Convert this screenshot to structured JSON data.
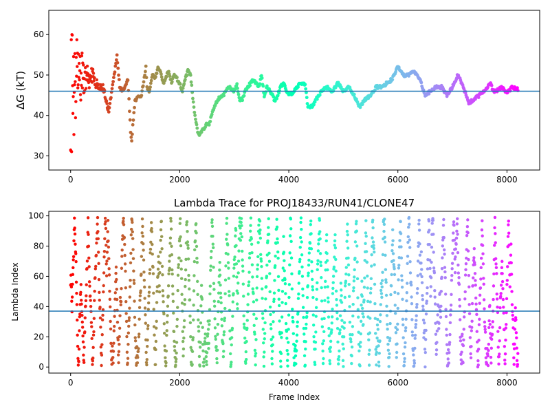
{
  "chart_data": [
    {
      "type": "scatter",
      "title": "",
      "xlabel": "",
      "ylabel": "ΔG (kT)",
      "xlim": [
        -400,
        8600
      ],
      "ylim": [
        26.5,
        66.0
      ],
      "xticks": [
        "0",
        "2000",
        "4000",
        "6000",
        "8000"
      ],
      "yticks": [
        "30",
        "40",
        "50",
        "60"
      ],
      "hline": 46.0,
      "hline_color": "#1f77b4",
      "colormap": "rainbow",
      "frames": 8200,
      "trace": [
        [
          0,
          44
        ],
        [
          100,
          50
        ],
        [
          200,
          50
        ],
        [
          300,
          49
        ],
        [
          400,
          50
        ],
        [
          500,
          47
        ],
        [
          600,
          47
        ],
        [
          700,
          41
        ],
        [
          800,
          50
        ],
        [
          850,
          55
        ],
        [
          900,
          47
        ],
        [
          950,
          46
        ],
        [
          1000,
          47
        ],
        [
          1050,
          49
        ],
        [
          1100,
          36
        ],
        [
          1120,
          34
        ],
        [
          1180,
          44
        ],
        [
          1200,
          44
        ],
        [
          1300,
          45
        ],
        [
          1380,
          52
        ],
        [
          1400,
          47
        ],
        [
          1450,
          46
        ],
        [
          1500,
          50
        ],
        [
          1550,
          49
        ],
        [
          1600,
          52
        ],
        [
          1650,
          51
        ],
        [
          1700,
          48
        ],
        [
          1800,
          51
        ],
        [
          1850,
          48
        ],
        [
          1900,
          50
        ],
        [
          2000,
          48
        ],
        [
          2050,
          46
        ],
        [
          2100,
          49
        ],
        [
          2150,
          51
        ],
        [
          2200,
          50
        ],
        [
          2250,
          43
        ],
        [
          2300,
          38
        ],
        [
          2350,
          35
        ],
        [
          2400,
          36
        ],
        [
          2500,
          38
        ],
        [
          2550,
          38
        ],
        [
          2600,
          41
        ],
        [
          2700,
          44
        ],
        [
          2800,
          45
        ],
        [
          2900,
          47
        ],
        [
          3000,
          46
        ],
        [
          3050,
          47.5
        ],
        [
          3100,
          44
        ],
        [
          3150,
          44
        ],
        [
          3200,
          46
        ],
        [
          3300,
          48
        ],
        [
          3350,
          49
        ],
        [
          3400,
          48
        ],
        [
          3450,
          47
        ],
        [
          3500,
          50
        ],
        [
          3550,
          45
        ],
        [
          3600,
          47
        ],
        [
          3700,
          45
        ],
        [
          3750,
          43.5
        ],
        [
          3850,
          47
        ],
        [
          3900,
          48
        ],
        [
          4000,
          45
        ],
        [
          4100,
          46
        ],
        [
          4200,
          48
        ],
        [
          4300,
          47.5
        ],
        [
          4350,
          42
        ],
        [
          4450,
          42.5
        ],
        [
          4500,
          44
        ],
        [
          4600,
          46
        ],
        [
          4700,
          47
        ],
        [
          4800,
          46
        ],
        [
          4900,
          48
        ],
        [
          5000,
          46
        ],
        [
          5100,
          47
        ],
        [
          5200,
          45
        ],
        [
          5300,
          42
        ],
        [
          5400,
          44
        ],
        [
          5500,
          45
        ],
        [
          5600,
          47
        ],
        [
          5700,
          47
        ],
        [
          5800,
          48
        ],
        [
          5900,
          49
        ],
        [
          6000,
          52
        ],
        [
          6100,
          50
        ],
        [
          6200,
          50
        ],
        [
          6300,
          51
        ],
        [
          6350,
          50
        ],
        [
          6400,
          49
        ],
        [
          6500,
          45
        ],
        [
          6600,
          46
        ],
        [
          6700,
          47
        ],
        [
          6800,
          47
        ],
        [
          6900,
          45
        ],
        [
          7000,
          47
        ],
        [
          7100,
          50
        ],
        [
          7200,
          47
        ],
        [
          7300,
          43
        ],
        [
          7400,
          44
        ],
        [
          7500,
          45
        ],
        [
          7600,
          46
        ],
        [
          7700,
          48
        ],
        [
          7750,
          46
        ],
        [
          7800,
          46
        ],
        [
          7900,
          47
        ],
        [
          8000,
          45.5
        ],
        [
          8100,
          47
        ],
        [
          8200,
          46.5
        ]
      ]
    },
    {
      "type": "scatter",
      "title": "Lambda Trace for PROJ18433/RUN41/CLONE47",
      "xlabel": "Frame Index",
      "ylabel": "Lambda Index",
      "xlim": [
        -400,
        8600
      ],
      "ylim": [
        -4,
        103
      ],
      "xticks": [
        "0",
        "2000",
        "4000",
        "6000",
        "8000"
      ],
      "yticks": [
        "0",
        "20",
        "40",
        "60",
        "80",
        "100"
      ],
      "hline": 37,
      "hline_color": "#1f77b4",
      "colormap": "rainbow",
      "frames": 8200,
      "range": [
        0,
        99
      ]
    }
  ]
}
